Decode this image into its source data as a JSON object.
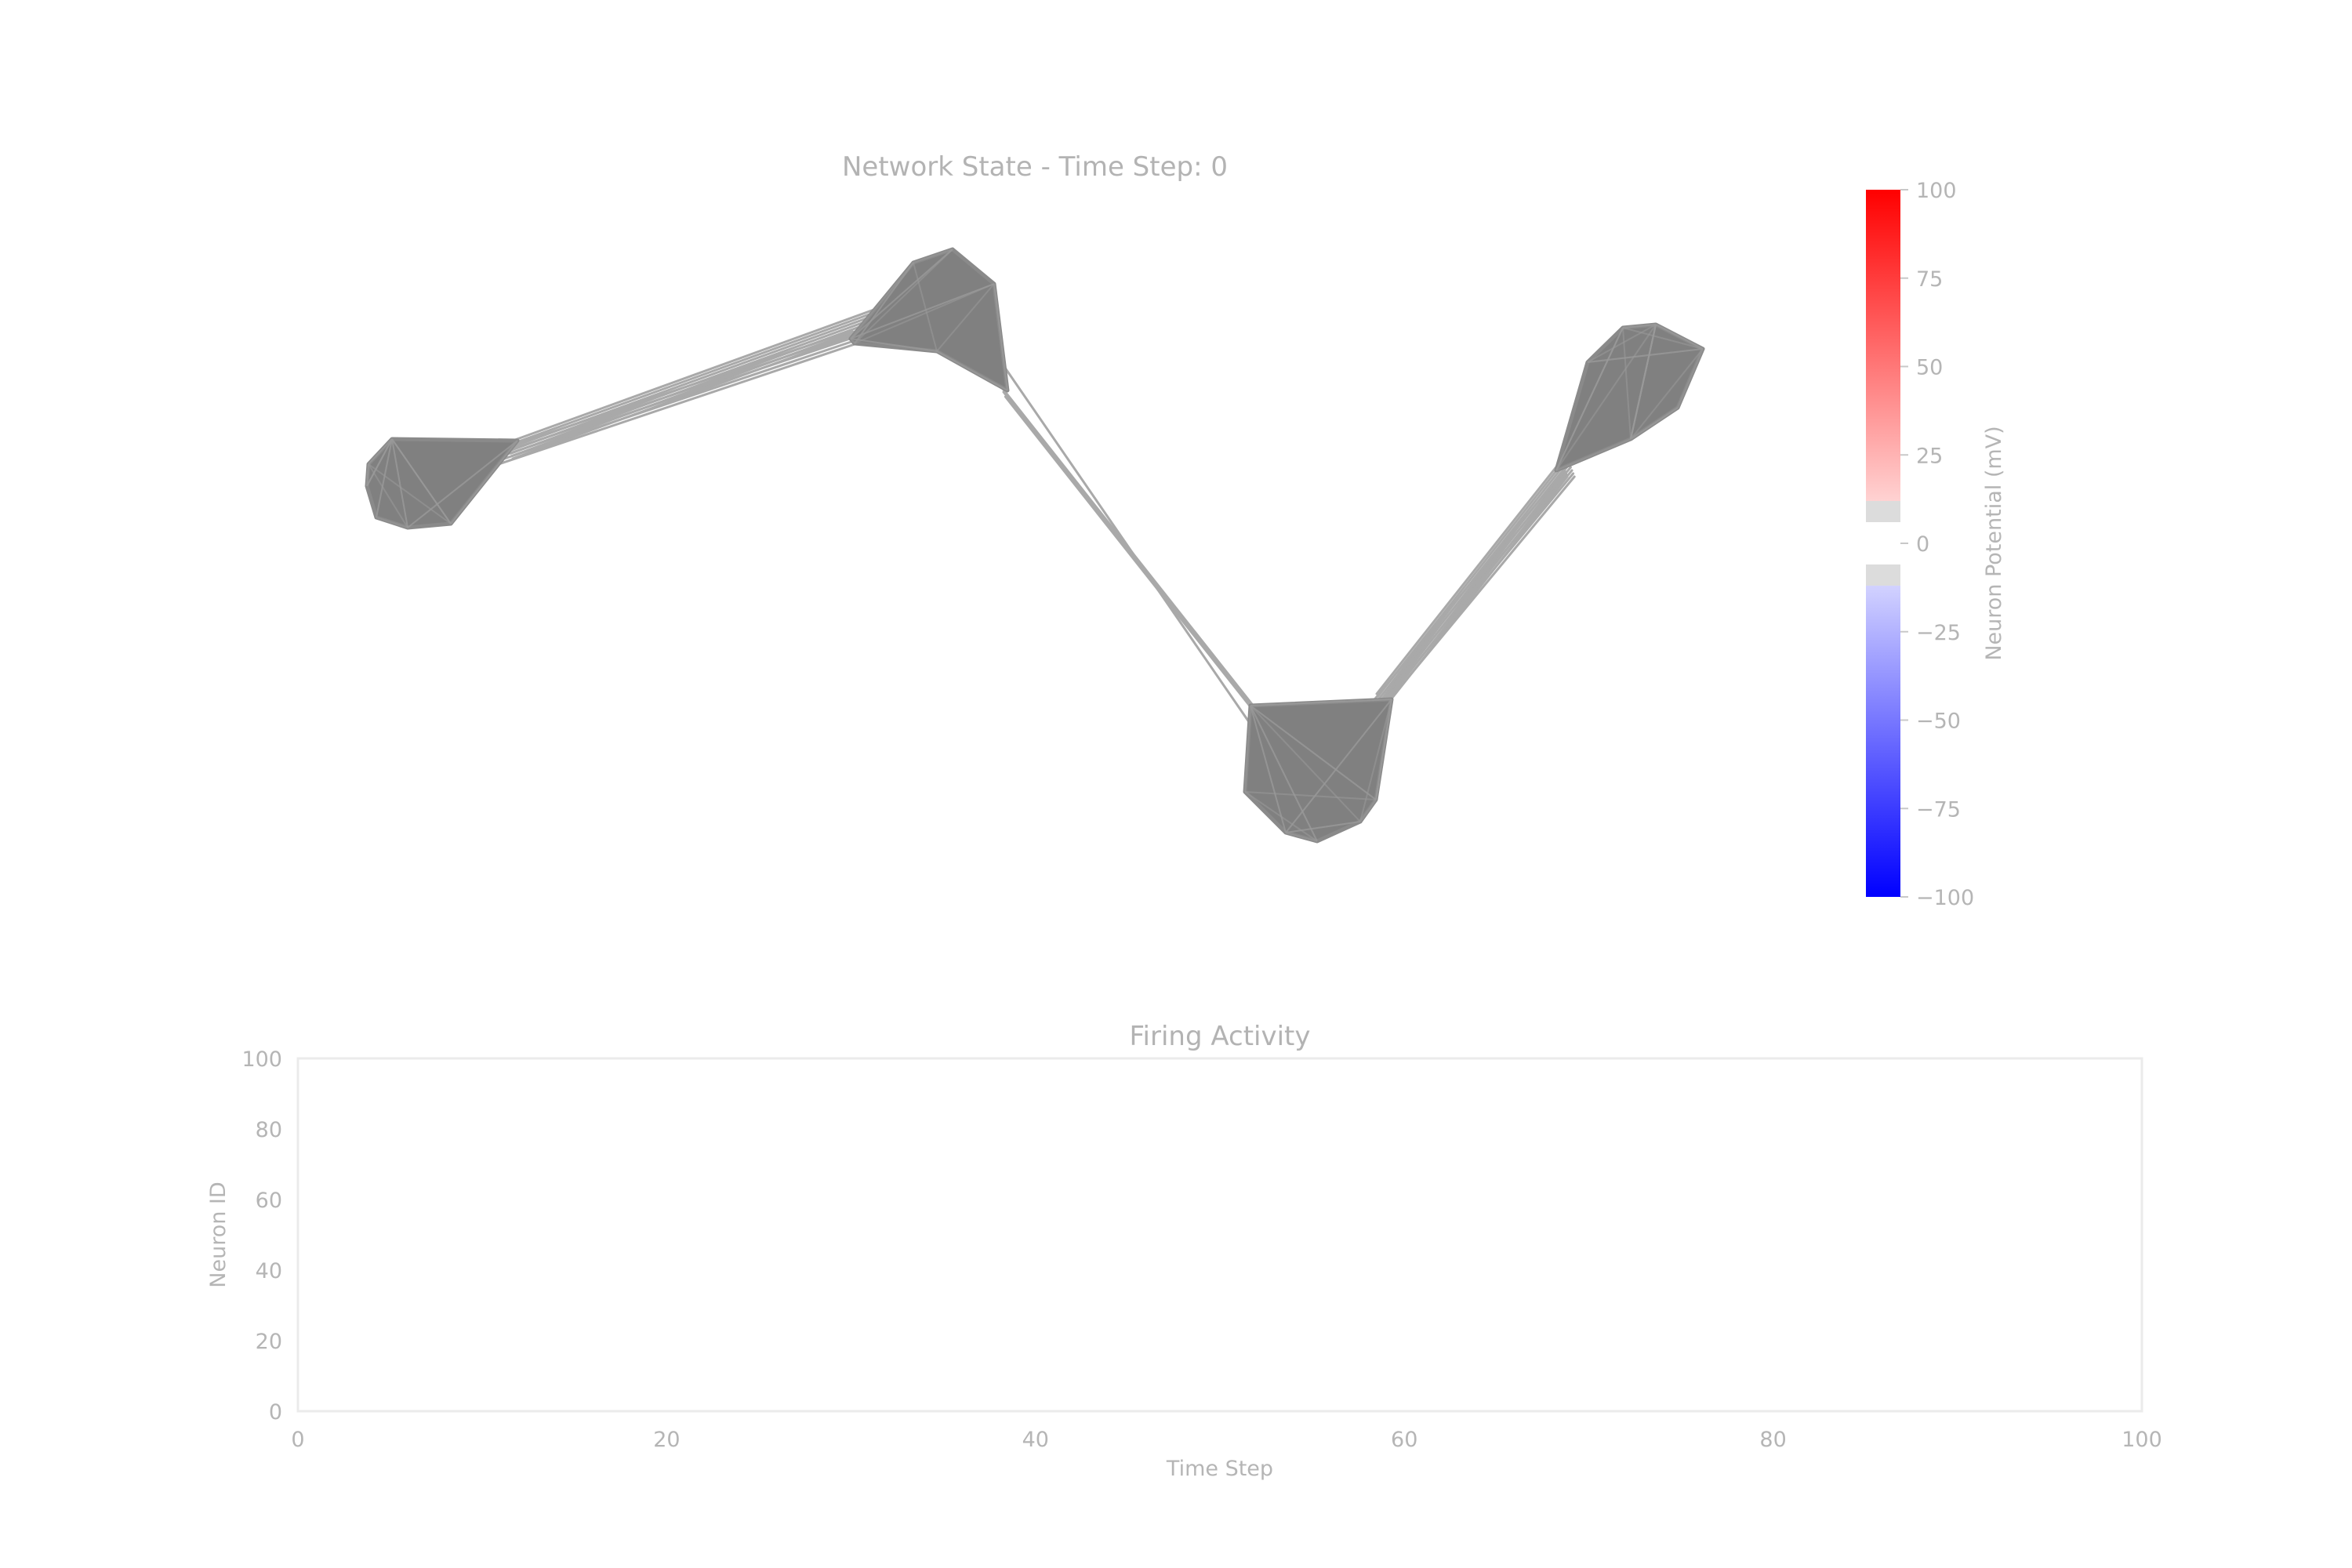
{
  "chart_data": [
    {
      "type": "network",
      "title": "Network State - Time Step: 0",
      "node_color": "#808080",
      "edge_color": "#a9a9a9",
      "colorbar": {
        "label": "Neuron Potential (mV)",
        "range": [
          -100,
          100
        ],
        "ticks": [
          "100",
          "75",
          "50",
          "25",
          "0",
          "−25",
          "−50",
          "−75",
          "−100"
        ],
        "colormap": "bwr",
        "low_color": "#0000ff",
        "mid_color": "#ffffff",
        "high_color": "#ff0000",
        "mid_band_color": "#dcdcdc"
      }
    },
    {
      "type": "scatter",
      "title": "Firing Activity",
      "xlabel": "Time Step",
      "ylabel": "Neuron ID",
      "xlim": [
        0,
        100
      ],
      "ylim": [
        0,
        100
      ],
      "xticks": [
        "0",
        "20",
        "40",
        "60",
        "80",
        "100"
      ],
      "yticks": [
        "0",
        "20",
        "40",
        "60",
        "80",
        "100"
      ],
      "points": []
    }
  ]
}
